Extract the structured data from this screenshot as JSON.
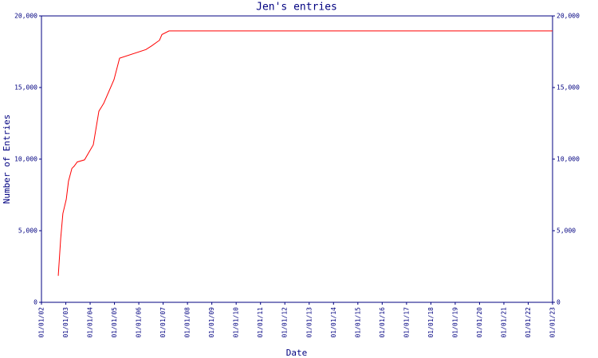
{
  "chart_data": {
    "type": "line",
    "title": "Jen's entries",
    "xlabel": "Date",
    "ylabel": "Number of Entries",
    "x": [
      2002.69,
      2002.79,
      2002.88,
      2003.02,
      2003.11,
      2003.25,
      2003.34,
      2003.47,
      2003.77,
      2004.13,
      2004.36,
      2004.56,
      2004.98,
      2005.21,
      2006.29,
      2006.52,
      2006.85,
      2006.95,
      2007.24,
      2023
    ],
    "series": [
      {
        "name": "Jen",
        "color": "#ff0000",
        "values": [
          1850,
          4450,
          6200,
          7200,
          8450,
          9350,
          9500,
          9800,
          9950,
          11000,
          13350,
          13900,
          15550,
          17050,
          17650,
          17900,
          18300,
          18700,
          18950,
          18950
        ]
      }
    ],
    "xlim": [
      2002,
      2023
    ],
    "xticks": [
      {
        "value": 2002,
        "label": "01/01/02"
      },
      {
        "value": 2003,
        "label": "01/01/03"
      },
      {
        "value": 2004,
        "label": "01/01/04"
      },
      {
        "value": 2005,
        "label": "01/01/05"
      },
      {
        "value": 2006,
        "label": "01/01/06"
      },
      {
        "value": 2007,
        "label": "01/01/07"
      },
      {
        "value": 2008,
        "label": "01/01/08"
      },
      {
        "value": 2009,
        "label": "01/01/09"
      },
      {
        "value": 2010,
        "label": "01/01/10"
      },
      {
        "value": 2011,
        "label": "01/01/11"
      },
      {
        "value": 2012,
        "label": "01/01/12"
      },
      {
        "value": 2013,
        "label": "01/01/13"
      },
      {
        "value": 2014,
        "label": "01/01/14"
      },
      {
        "value": 2015,
        "label": "01/01/15"
      },
      {
        "value": 2016,
        "label": "01/01/16"
      },
      {
        "value": 2017,
        "label": "01/01/17"
      },
      {
        "value": 2018,
        "label": "01/01/18"
      },
      {
        "value": 2019,
        "label": "01/01/19"
      },
      {
        "value": 2020,
        "label": "01/01/20"
      },
      {
        "value": 2021,
        "label": "01/01/21"
      },
      {
        "value": 2022,
        "label": "01/01/22"
      },
      {
        "value": 2023,
        "label": "01/01/23"
      }
    ],
    "ylim": [
      0,
      20000
    ],
    "yticks": [
      0,
      {
        "value": 5000,
        "label": "5,000"
      },
      {
        "value": 10000,
        "label": "10,000"
      },
      {
        "value": 15000,
        "label": "15,000"
      },
      {
        "value": 20000,
        "label": "20,000"
      }
    ],
    "y2lim": [
      0,
      20000
    ],
    "y2ticks": [
      0,
      {
        "value": 5000,
        "label": "5,000"
      },
      {
        "value": 10000,
        "label": "10,000"
      },
      {
        "value": 15000,
        "label": "15,000"
      },
      {
        "value": 20000,
        "label": "20,000"
      }
    ]
  }
}
